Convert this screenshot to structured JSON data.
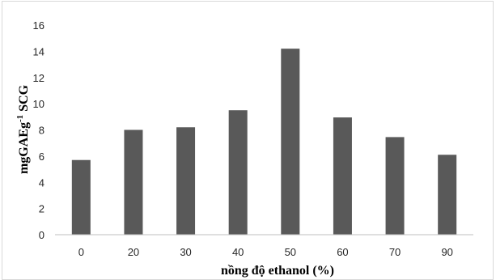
{
  "chart_data": {
    "type": "bar",
    "title": "",
    "xlabel": "nồng độ ethanol (%)",
    "ylabel_main": "mgGAEg",
    "ylabel_sup": "-1",
    "ylabel_tail": " SCG",
    "categories": [
      "0",
      "20",
      "30",
      "40",
      "50",
      "60",
      "70",
      "90"
    ],
    "values": [
      5.7,
      8.0,
      8.2,
      9.5,
      14.2,
      8.95,
      7.45,
      6.1
    ],
    "ylim": [
      0,
      16
    ],
    "yticks": [
      0,
      2,
      4,
      6,
      8,
      10,
      12,
      14,
      16
    ],
    "grid": false,
    "legend": "none",
    "bar_color": "#595959",
    "axis_color": "#bfbfbf"
  }
}
